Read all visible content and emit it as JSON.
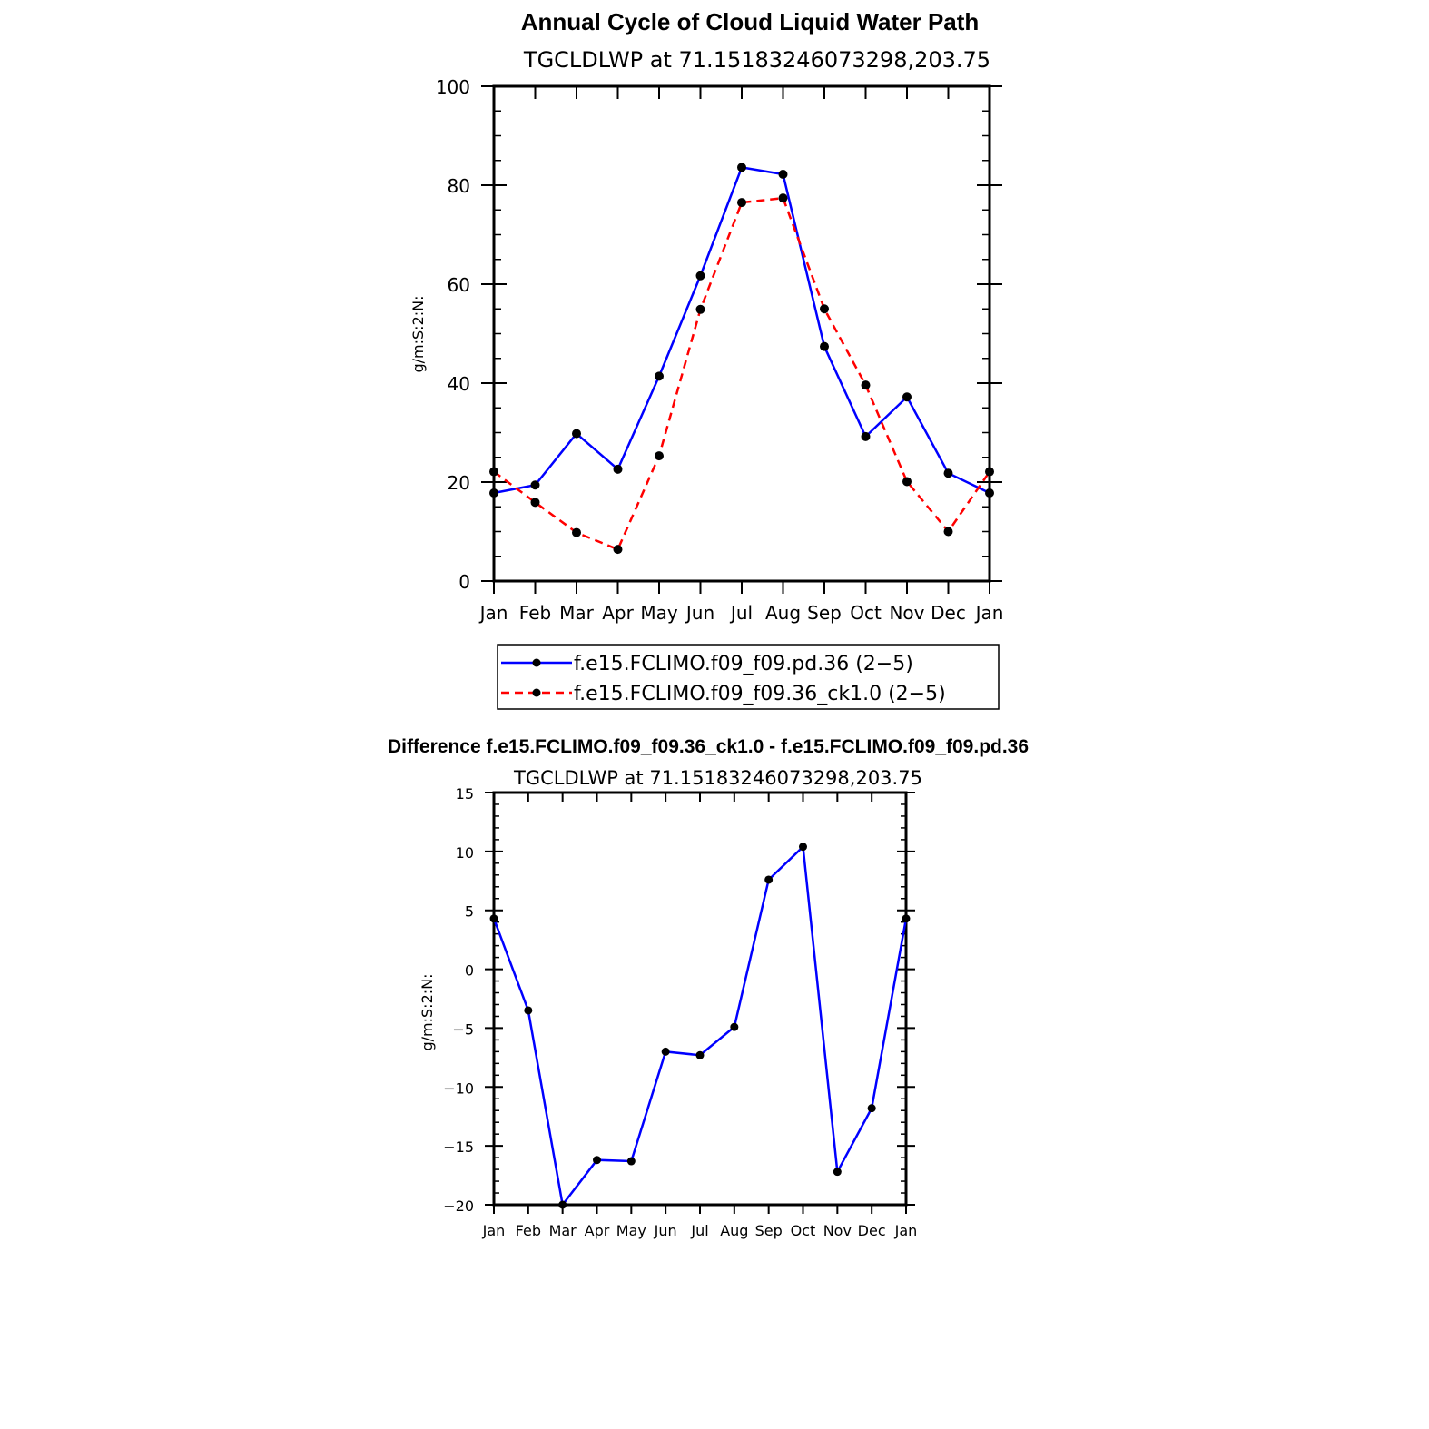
{
  "chart_data": [
    {
      "type": "line",
      "title": "Annual Cycle of Cloud Liquid Water Path",
      "subtitle": "TGCLDLWP at 71.15183246073298,203.75",
      "xlabel": "",
      "ylabel": "g/m:S:2:N:",
      "categories": [
        "Jan",
        "Feb",
        "Mar",
        "Apr",
        "May",
        "Jun",
        "Jul",
        "Aug",
        "Sep",
        "Oct",
        "Nov",
        "Dec",
        "Jan"
      ],
      "ylim": [
        0,
        100
      ],
      "yticks": [
        "0",
        "20",
        "40",
        "60",
        "80",
        "100"
      ],
      "legend_position": "bottom",
      "series": [
        {
          "name": "f.e15.FCLIMO.f09_f09.pd.36 (2−5)",
          "color": "#0000ff",
          "dash": "solid",
          "values": [
            17.8,
            19.4,
            29.8,
            22.6,
            41.4,
            61.7,
            83.6,
            82.2,
            47.4,
            29.2,
            37.2,
            21.8,
            17.8
          ]
        },
        {
          "name": "f.e15.FCLIMO.f09_f09.36_ck1.0 (2−5)",
          "color": "#ff0000",
          "dash": "dashed",
          "values": [
            22.1,
            15.9,
            9.8,
            6.4,
            25.3,
            54.9,
            76.5,
            77.4,
            55.0,
            39.6,
            20.1,
            10.0,
            22.1
          ]
        }
      ]
    },
    {
      "type": "line",
      "title": "Difference f.e15.FCLIMO.f09_f09.36_ck1.0 - f.e15.FCLIMO.f09_f09.pd.36",
      "subtitle": "TGCLDLWP at 71.15183246073298,203.75",
      "xlabel": "",
      "ylabel": "g/m:S:2:N:",
      "categories": [
        "Jan",
        "Feb",
        "Mar",
        "Apr",
        "May",
        "Jun",
        "Jul",
        "Aug",
        "Sep",
        "Oct",
        "Nov",
        "Dec",
        "Jan"
      ],
      "ylim": [
        -20,
        15
      ],
      "yticks": [
        "−20",
        "−15",
        "−10",
        "−5",
        "0",
        "5",
        "10",
        "15"
      ],
      "series": [
        {
          "name": "Difference",
          "color": "#0000ff",
          "dash": "solid",
          "values": [
            4.3,
            -3.5,
            -20.0,
            -16.2,
            -16.3,
            -7.0,
            -7.3,
            -4.9,
            7.6,
            10.4,
            -17.2,
            -11.8,
            4.3
          ]
        }
      ]
    }
  ]
}
